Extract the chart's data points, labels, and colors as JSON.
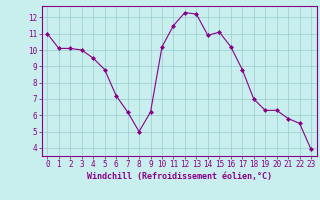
{
  "x": [
    0,
    1,
    2,
    3,
    4,
    5,
    6,
    7,
    8,
    9,
    10,
    11,
    12,
    13,
    14,
    15,
    16,
    17,
    18,
    19,
    20,
    21,
    22,
    23
  ],
  "y": [
    11,
    10.1,
    10.1,
    10,
    9.5,
    8.8,
    7.2,
    6.2,
    5.0,
    6.2,
    10.2,
    11.5,
    12.3,
    12.2,
    10.9,
    11.1,
    10.2,
    8.8,
    7.0,
    6.3,
    6.3,
    5.8,
    5.5,
    3.9
  ],
  "line_color": "#880088",
  "marker": "D",
  "marker_size": 2.0,
  "bg_color": "#c8eeee",
  "grid_color": "#99cccc",
  "xlabel": "Windchill (Refroidissement éolien,°C)",
  "xlim": [
    -0.5,
    23.5
  ],
  "ylim": [
    3.5,
    12.7
  ],
  "yticks": [
    4,
    5,
    6,
    7,
    8,
    9,
    10,
    11,
    12
  ],
  "xticks": [
    0,
    1,
    2,
    3,
    4,
    5,
    6,
    7,
    8,
    9,
    10,
    11,
    12,
    13,
    14,
    15,
    16,
    17,
    18,
    19,
    20,
    21,
    22,
    23
  ],
  "tick_color": "#880088",
  "label_color": "#880088",
  "spine_color": "#880088",
  "xlabel_fontsize": 6.0,
  "tick_fontsize": 5.5
}
